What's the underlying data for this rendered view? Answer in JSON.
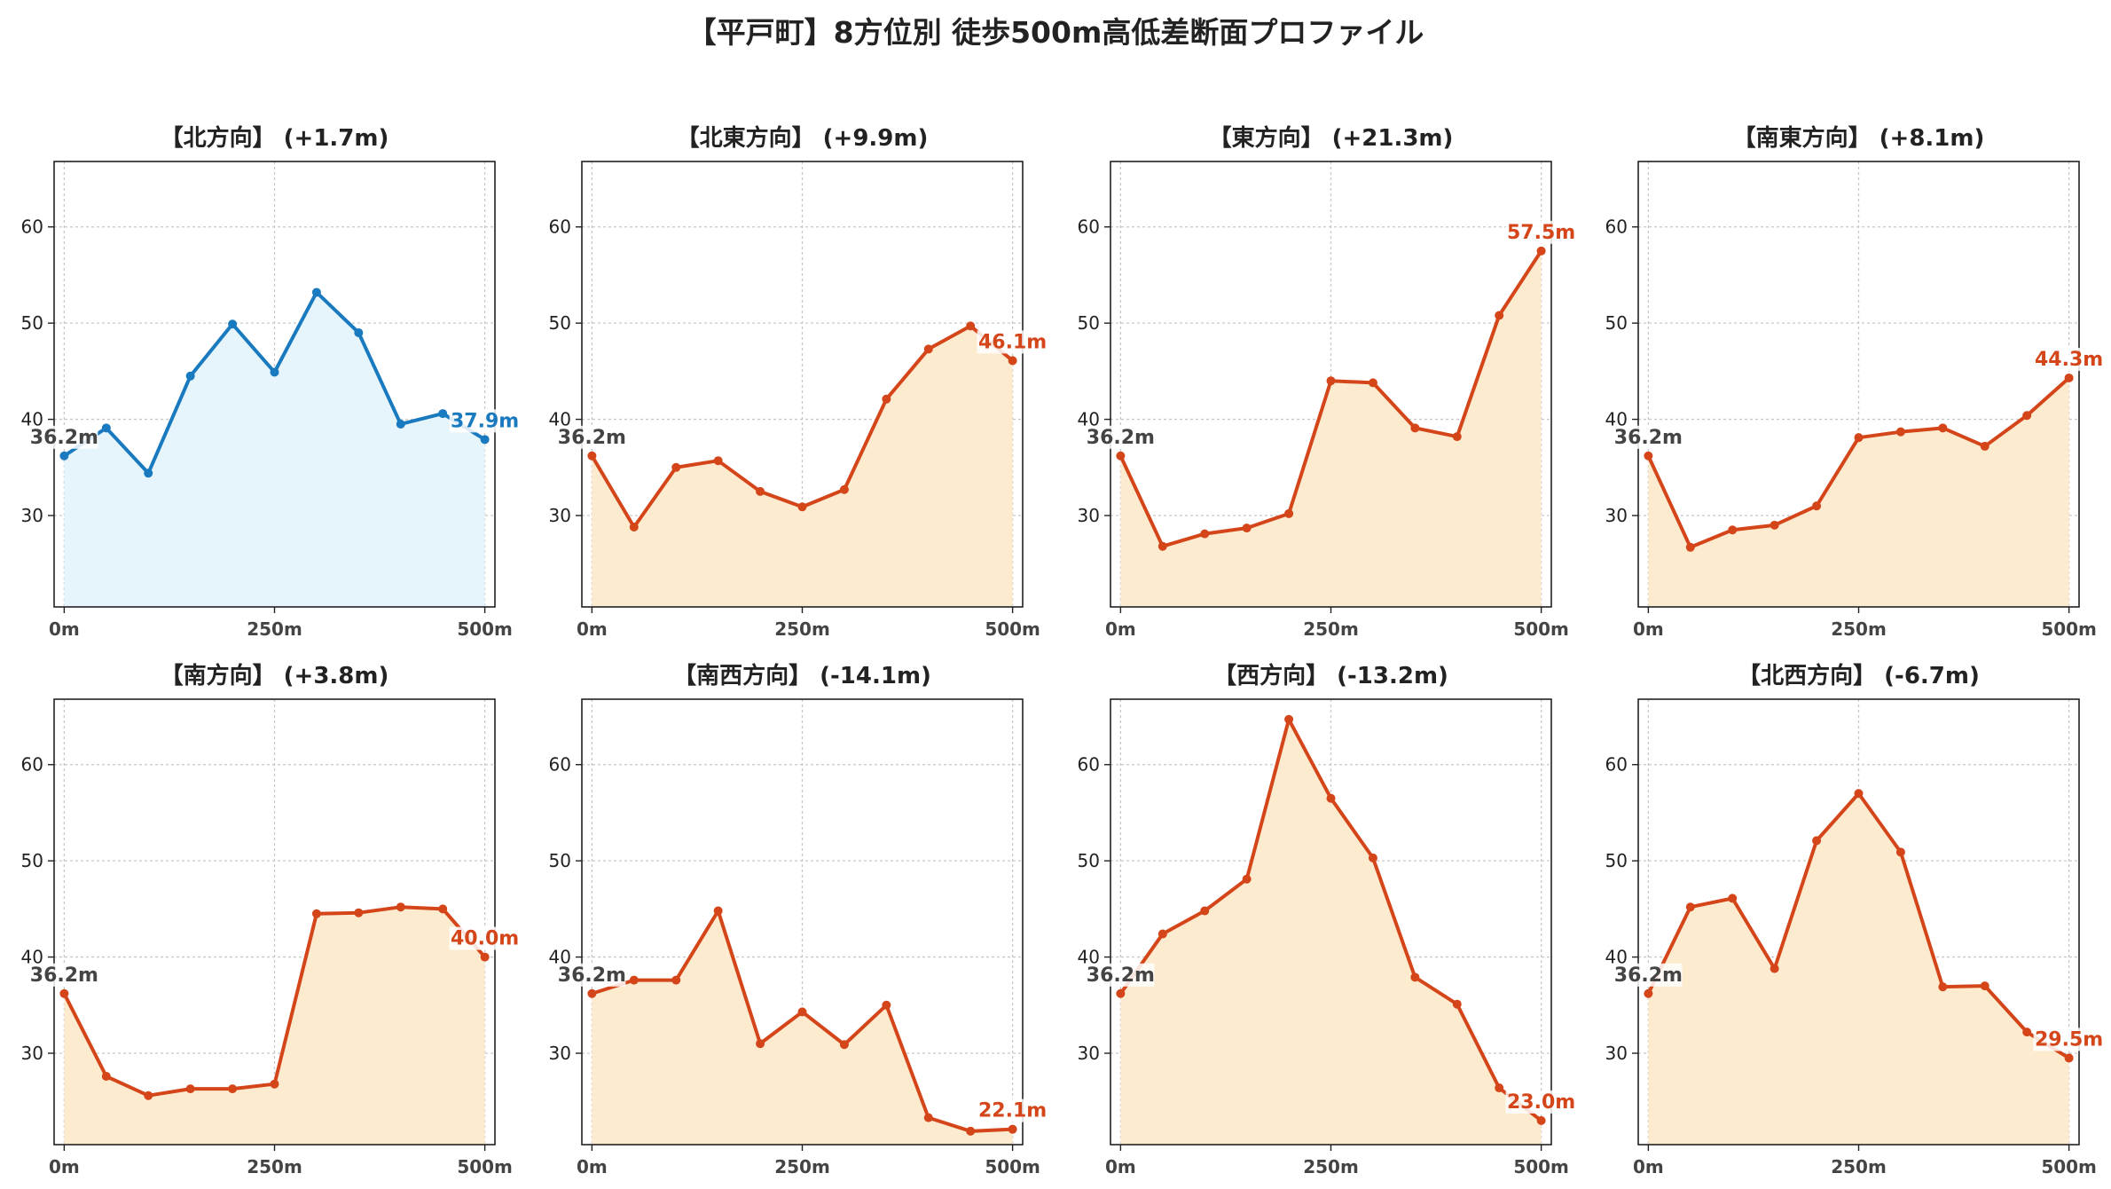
{
  "suptitle": "【平戸町】8方位別 徒歩500m高低差断面プロファイル",
  "colors": {
    "north_line": "#1a7abf",
    "north_fill": "#e6f5fb",
    "other_line": "#d4461a",
    "other_fill": "#fdebd0",
    "start_label": "#444444",
    "grid": "#c8c8c8",
    "axis": "#222222",
    "tick_text": "#444444"
  },
  "chart_data": [
    {
      "type": "area",
      "title": "【北方向】 (+1.7m)",
      "theme": "north",
      "x": [
        0,
        50,
        100,
        150,
        200,
        250,
        300,
        350,
        400,
        450,
        500
      ],
      "y": [
        36.2,
        39.1,
        34.4,
        44.5,
        49.9,
        44.9,
        53.2,
        49.0,
        39.5,
        40.6,
        37.9
      ],
      "start_label": "36.2m",
      "end_label": "37.9m",
      "xticks": [
        "0m",
        "250m",
        "500m"
      ],
      "xtick_values": [
        0,
        250,
        500
      ],
      "yticks": [
        30,
        40,
        50,
        60
      ],
      "xlim": [
        -12,
        512
      ],
      "ylim": [
        20.5,
        66.8
      ],
      "grid": true
    },
    {
      "type": "area",
      "title": "【北東方向】 (+9.9m)",
      "theme": "other",
      "x": [
        0,
        50,
        100,
        150,
        200,
        250,
        300,
        350,
        400,
        450,
        500
      ],
      "y": [
        36.2,
        28.8,
        35.0,
        35.7,
        32.5,
        30.9,
        32.7,
        42.1,
        47.3,
        49.7,
        46.1
      ],
      "start_label": "36.2m",
      "end_label": "46.1m",
      "xticks": [
        "0m",
        "250m",
        "500m"
      ],
      "xtick_values": [
        0,
        250,
        500
      ],
      "yticks": [
        30,
        40,
        50,
        60
      ],
      "xlim": [
        -12,
        512
      ],
      "ylim": [
        20.5,
        66.8
      ],
      "grid": true
    },
    {
      "type": "area",
      "title": "【東方向】 (+21.3m)",
      "theme": "other",
      "x": [
        0,
        50,
        100,
        150,
        200,
        250,
        300,
        350,
        400,
        450,
        500
      ],
      "y": [
        36.2,
        26.8,
        28.1,
        28.7,
        30.2,
        44.0,
        43.8,
        39.1,
        38.2,
        50.8,
        57.5
      ],
      "start_label": "36.2m",
      "end_label": "57.5m",
      "xticks": [
        "0m",
        "250m",
        "500m"
      ],
      "xtick_values": [
        0,
        250,
        500
      ],
      "yticks": [
        30,
        40,
        50,
        60
      ],
      "xlim": [
        -12,
        512
      ],
      "ylim": [
        20.5,
        66.8
      ],
      "grid": true
    },
    {
      "type": "area",
      "title": "【南東方向】 (+8.1m)",
      "theme": "other",
      "x": [
        0,
        50,
        100,
        150,
        200,
        250,
        300,
        350,
        400,
        450,
        500
      ],
      "y": [
        36.2,
        26.7,
        28.5,
        29.0,
        31.0,
        38.1,
        38.7,
        39.1,
        37.2,
        40.4,
        44.3
      ],
      "start_label": "36.2m",
      "end_label": "44.3m",
      "xticks": [
        "0m",
        "250m",
        "500m"
      ],
      "xtick_values": [
        0,
        250,
        500
      ],
      "yticks": [
        30,
        40,
        50,
        60
      ],
      "xlim": [
        -12,
        512
      ],
      "ylim": [
        20.5,
        66.8
      ],
      "grid": true
    },
    {
      "type": "area",
      "title": "【南方向】 (+3.8m)",
      "theme": "other",
      "x": [
        0,
        50,
        100,
        150,
        200,
        250,
        300,
        350,
        400,
        450,
        500
      ],
      "y": [
        36.2,
        27.6,
        25.6,
        26.3,
        26.3,
        26.8,
        44.5,
        44.6,
        45.2,
        45.0,
        40.0
      ],
      "start_label": "36.2m",
      "end_label": "40.0m",
      "xticks": [
        "0m",
        "250m",
        "500m"
      ],
      "xtick_values": [
        0,
        250,
        500
      ],
      "yticks": [
        30,
        40,
        50,
        60
      ],
      "xlim": [
        -12,
        512
      ],
      "ylim": [
        20.5,
        66.8
      ],
      "grid": true
    },
    {
      "type": "area",
      "title": "【南西方向】 (-14.1m)",
      "theme": "other",
      "x": [
        0,
        50,
        100,
        150,
        200,
        250,
        300,
        350,
        400,
        450,
        500
      ],
      "y": [
        36.2,
        37.6,
        37.6,
        44.8,
        31.0,
        34.3,
        30.9,
        35.0,
        23.3,
        21.9,
        22.1
      ],
      "start_label": "36.2m",
      "end_label": "22.1m",
      "xticks": [
        "0m",
        "250m",
        "500m"
      ],
      "xtick_values": [
        0,
        250,
        500
      ],
      "yticks": [
        30,
        40,
        50,
        60
      ],
      "xlim": [
        -12,
        512
      ],
      "ylim": [
        20.5,
        66.8
      ],
      "grid": true
    },
    {
      "type": "area",
      "title": "【西方向】 (-13.2m)",
      "theme": "other",
      "x": [
        0,
        50,
        100,
        150,
        200,
        250,
        300,
        350,
        400,
        450,
        500
      ],
      "y": [
        36.2,
        42.4,
        44.8,
        48.1,
        64.7,
        56.5,
        50.3,
        37.9,
        35.1,
        26.4,
        23.0
      ],
      "start_label": "36.2m",
      "end_label": "23.0m",
      "xticks": [
        "0m",
        "250m",
        "500m"
      ],
      "xtick_values": [
        0,
        250,
        500
      ],
      "yticks": [
        30,
        40,
        50,
        60
      ],
      "xlim": [
        -12,
        512
      ],
      "ylim": [
        20.5,
        66.8
      ],
      "grid": true
    },
    {
      "type": "area",
      "title": "【北西方向】 (-6.7m)",
      "theme": "other",
      "x": [
        0,
        50,
        100,
        150,
        200,
        250,
        300,
        350,
        400,
        450,
        500
      ],
      "y": [
        36.2,
        45.2,
        46.1,
        38.8,
        52.1,
        57.0,
        50.9,
        36.9,
        37.0,
        32.2,
        29.5
      ],
      "start_label": "36.2m",
      "end_label": "29.5m",
      "xticks": [
        "0m",
        "250m",
        "500m"
      ],
      "xtick_values": [
        0,
        250,
        500
      ],
      "yticks": [
        30,
        40,
        50,
        60
      ],
      "xlim": [
        -12,
        512
      ],
      "ylim": [
        20.5,
        66.8
      ],
      "grid": true
    }
  ]
}
